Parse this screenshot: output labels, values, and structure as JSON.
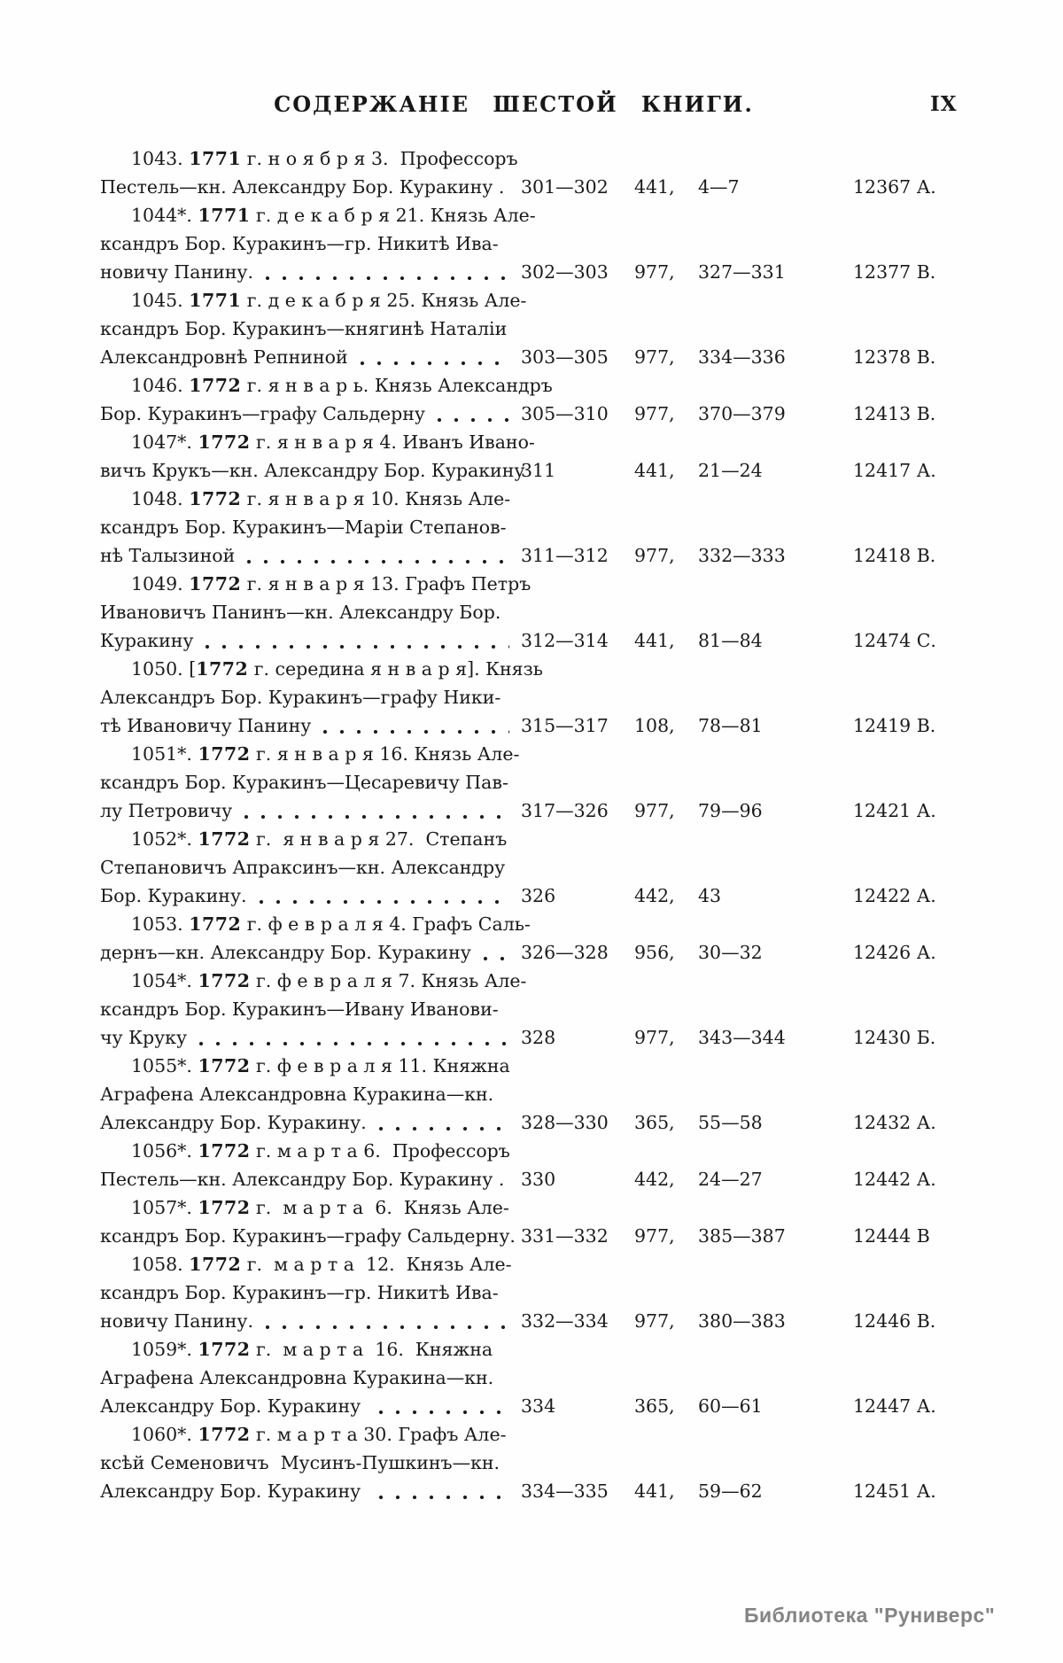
{
  "page": {
    "title": "СОДЕРЖАНІЕ ШЕСТОЙ КНИГИ.",
    "page_number": "IX",
    "watermark": "Библиотека \"Руниверс\""
  },
  "entries": [
    {
      "num": "1043.",
      "pre": "",
      "year": "1771",
      "tail": " г. н о я б р я 3.  Профессоръ",
      "mid": [],
      "last": "Пестель—кн. Александру Бор. Куракину .",
      "leader": false,
      "pages": "301—302",
      "ref": "441,",
      "refp": "4—7",
      "code": "12367 А."
    },
    {
      "num": "1044*.",
      "pre": "",
      "year": "1771",
      "tail": " г. д е к а б р я 21. Князь Але-",
      "mid": [
        "ксандръ Бор. Куракинъ—гр. Никитѣ Ива-"
      ],
      "last": "новичу Панину.",
      "leader": true,
      "pages": "302—303",
      "ref": "977,",
      "refp": "327—331",
      "code": "12377 В."
    },
    {
      "num": "1045.",
      "pre": "",
      "year": "1771",
      "tail": " г. д е к а б р я 25. Князь Але-",
      "mid": [
        "ксандръ Бор. Куракинъ—княгинѣ Наталіи"
      ],
      "last": "Александровнѣ Репниной",
      "leader": true,
      "pages": "303—305",
      "ref": "977,",
      "refp": "334—336",
      "code": "12378 В."
    },
    {
      "num": "1046.",
      "pre": "",
      "year": "1772",
      "tail": " г. я н в а р ь. Князь Александръ",
      "mid": [],
      "last": "Бор. Куракинъ—графу Сальдерну",
      "leader": true,
      "pages": "305—310",
      "ref": "977,",
      "refp": "370—379",
      "code": "12413 В."
    },
    {
      "num": "1047*.",
      "pre": "",
      "year": "1772",
      "tail": " г. я н в а р я 4. Иванъ Ивано-",
      "mid": [],
      "last": "вичъ Крукъ—кн. Александру Бор. Куракину",
      "leader": false,
      "pages": "311",
      "ref": "441,",
      "refp": "21—24",
      "code": "12417 А."
    },
    {
      "num": "1048.",
      "pre": "",
      "year": "1772",
      "tail": " г. я н в а р я 10. Князь Але-",
      "mid": [
        "ксандръ Бор. Куракинъ—Маріи Степанов-"
      ],
      "last": "нѣ Талызиной",
      "leader": true,
      "pages": "311—312",
      "ref": "977,",
      "refp": "332—333",
      "code": "12418 В."
    },
    {
      "num": "1049.",
      "pre": "",
      "year": "1772",
      "tail": " г. я н в а р я 13. Графъ Петръ",
      "mid": [
        "Ивановичъ Панинъ—кн. Александру Бор."
      ],
      "last": "Куракину",
      "leader": true,
      "pages": "312—314",
      "ref": "441,",
      "refp": "81—84",
      "code": "12474 С."
    },
    {
      "num": "1050.",
      "pre": "[",
      "year": "1772",
      "tail": " г. середина я н в а р я]. Князь",
      "mid": [
        "Александръ Бор. Куракинъ—графу Ники-"
      ],
      "last": "тѣ Ивановичу Панину",
      "leader": true,
      "pages": "315—317",
      "ref": "108,",
      "refp": "78—81",
      "code": "12419 В."
    },
    {
      "num": "1051*.",
      "pre": "",
      "year": "1772",
      "tail": " г. я н в а р я 16. Князь Але-",
      "mid": [
        "ксандръ Бор. Куракинъ—Цесаревичу Пав-"
      ],
      "last": "лу Петровичу",
      "leader": true,
      "pages": "317—326",
      "ref": "977,",
      "refp": "79—96",
      "code": "12421 А."
    },
    {
      "num": "1052*.",
      "pre": "",
      "year": "1772",
      "tail": " г.  я н в а р я 27.  Степанъ",
      "mid": [
        "Степановичъ Апраксинъ—кн. Александру"
      ],
      "last": "Бор. Куракину.",
      "leader": true,
      "pages": "326",
      "ref": "442,",
      "refp": "43",
      "code": "12422 А."
    },
    {
      "num": "1053.",
      "pre": "",
      "year": "1772",
      "tail": " г. ф е в р а л я 4. Графъ Саль-",
      "mid": [],
      "last": "дернъ—кн. Александру Бор. Куракину",
      "leader": true,
      "pages": "326—328",
      "ref": "956,",
      "refp": "30—32",
      "code": "12426 А."
    },
    {
      "num": "1054*.",
      "pre": "",
      "year": "1772",
      "tail": " г. ф е в р а л я 7. Князь Але-",
      "mid": [
        "ксандръ Бор. Куракинъ—Ивану Иванови-"
      ],
      "last": "чу Круку",
      "leader": true,
      "pages": "328",
      "ref": "977,",
      "refp": "343—344",
      "code": "12430 Б."
    },
    {
      "num": "1055*.",
      "pre": "",
      "year": "1772",
      "tail": " г. ф е в р а л я 11. Княжна",
      "mid": [
        "Аграфена Александровна Куракина—кн."
      ],
      "last": "Александру Бор. Куракину.",
      "leader": true,
      "pages": "328—330",
      "ref": "365,",
      "refp": "55—58",
      "code": "12432 А."
    },
    {
      "num": "1056*.",
      "pre": "",
      "year": "1772",
      "tail": " г. м а р т а 6.  Профессоръ",
      "mid": [],
      "last": "Пестель—кн. Александру Бор. Куракину .",
      "leader": false,
      "pages": "330",
      "ref": "442,",
      "refp": "24—27",
      "code": "12442 А."
    },
    {
      "num": "1057*.",
      "pre": "",
      "year": "1772",
      "tail": " г.  м а р т а  6.  Князь Але-",
      "mid": [],
      "last": "ксандръ Бор. Куракинъ—графу Сальдерну.",
      "leader": false,
      "pages": "331—332",
      "ref": "977,",
      "refp": "385—387",
      "code": "12444 В"
    },
    {
      "num": "1058.",
      "pre": "",
      "year": "1772",
      "tail": " г.  м а р т а  12.  Князь Але-",
      "mid": [
        "ксандръ Бор. Куракинъ—гр. Никитѣ Ива-"
      ],
      "last": "новичу Панину.",
      "leader": true,
      "pages": "332—334",
      "ref": "977,",
      "refp": "380—383",
      "code": "12446 В."
    },
    {
      "num": "1059*.",
      "pre": "",
      "year": "1772",
      "tail": " г.  м а р т а  16.  Княжна",
      "mid": [
        "Аграфена Александровна Куракина—кн."
      ],
      "last": "Александру Бор. Куракину ",
      "leader": true,
      "pages": "334",
      "ref": "365,",
      "refp": "60—61",
      "code": "12447 А."
    },
    {
      "num": "1060*.",
      "pre": "",
      "year": "1772",
      "tail": " г. м а р т а 30. Графъ Але-",
      "mid": [
        "ксѣй Семеновичъ  Мусинъ-Пушкинъ—кн."
      ],
      "last": "Александру Бор. Куракину ",
      "leader": true,
      "pages": "334—335",
      "ref": "441,",
      "refp": "59—62",
      "code": "12451 А."
    }
  ]
}
